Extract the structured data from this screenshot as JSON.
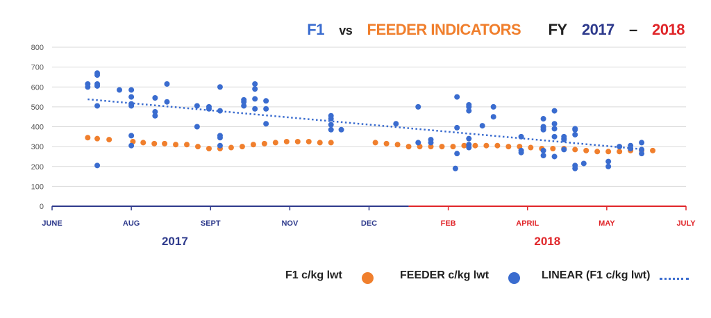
{
  "title": {
    "part1": "F1",
    "part2": "vs",
    "part3": "FEEDER INDICATORS",
    "part4": "FY",
    "part5": "2017",
    "part6": "–",
    "part7": "2018"
  },
  "colors": {
    "f1": "#f07f2d",
    "feeder": "#3a6ccf",
    "linear": "#3a6ccf",
    "axis_2017": "#2e3a8c",
    "axis_2018": "#e0262a",
    "title_dark": "#222222",
    "grid": "#d9d9d9"
  },
  "legend": {
    "f1": "F1 c/kg lwt",
    "feeder": "FEEDER c/kg lwt",
    "linear": "LINEAR (F1 c/kg lwt)"
  },
  "chart_data": {
    "type": "scatter",
    "y_ticks": [
      "0",
      "100",
      "200",
      "300",
      "400",
      "500",
      "600",
      "700",
      "800"
    ],
    "ylim": [
      0,
      800
    ],
    "grid": "horizontal",
    "x_months": [
      {
        "label": "JUNE",
        "year": "2017"
      },
      {
        "label": "AUG",
        "year": "2017"
      },
      {
        "label": "SEPT",
        "year": "2017"
      },
      {
        "label": "NOV",
        "year": "2017"
      },
      {
        "label": "DEC",
        "year": "2017"
      },
      {
        "label": "FEB",
        "year": "2018"
      },
      {
        "label": "APRIL",
        "year": "2018"
      },
      {
        "label": "MAY",
        "year": "2018"
      },
      {
        "label": "JULY",
        "year": "2018"
      }
    ],
    "year_labels": [
      "2017",
      "2018"
    ],
    "x_range": [
      0,
      8
    ],
    "legend_position": "bottom-right",
    "series": [
      {
        "name": "F1 c/kg lwt",
        "points": [
          [
            0.45,
            345
          ],
          [
            0.57,
            340
          ],
          [
            0.72,
            335
          ],
          [
            1.02,
            325
          ],
          [
            1.15,
            320
          ],
          [
            1.29,
            315
          ],
          [
            1.42,
            315
          ],
          [
            1.56,
            310
          ],
          [
            1.7,
            310
          ],
          [
            1.84,
            300
          ],
          [
            1.98,
            290
          ],
          [
            2.12,
            290
          ],
          [
            2.26,
            295
          ],
          [
            2.4,
            300
          ],
          [
            2.54,
            310
          ],
          [
            2.68,
            315
          ],
          [
            2.82,
            320
          ],
          [
            2.96,
            325
          ],
          [
            3.1,
            325
          ],
          [
            3.24,
            325
          ],
          [
            3.38,
            320
          ],
          [
            3.52,
            320
          ],
          [
            4.08,
            320
          ],
          [
            4.22,
            315
          ],
          [
            4.36,
            310
          ],
          [
            4.5,
            300
          ],
          [
            4.64,
            300
          ],
          [
            4.78,
            300
          ],
          [
            4.92,
            300
          ],
          [
            5.06,
            300
          ],
          [
            5.2,
            305
          ],
          [
            5.34,
            305
          ],
          [
            5.48,
            305
          ],
          [
            5.62,
            305
          ],
          [
            5.76,
            300
          ],
          [
            5.9,
            300
          ],
          [
            6.04,
            295
          ],
          [
            6.18,
            290
          ],
          [
            6.32,
            290
          ],
          [
            6.46,
            290
          ],
          [
            6.6,
            285
          ],
          [
            6.74,
            280
          ],
          [
            6.88,
            275
          ],
          [
            7.02,
            275
          ],
          [
            7.16,
            275
          ],
          [
            7.3,
            280
          ],
          [
            7.44,
            280
          ],
          [
            7.58,
            280
          ]
        ]
      },
      {
        "name": "FEEDER c/kg lwt",
        "points": [
          [
            0.45,
            600
          ],
          [
            0.45,
            615
          ],
          [
            0.57,
            670
          ],
          [
            0.57,
            660
          ],
          [
            0.57,
            615
          ],
          [
            0.57,
            605
          ],
          [
            0.57,
            505
          ],
          [
            0.57,
            205
          ],
          [
            0.85,
            585
          ],
          [
            1.0,
            585
          ],
          [
            1.0,
            550
          ],
          [
            1.0,
            515
          ],
          [
            1.0,
            505
          ],
          [
            1.0,
            355
          ],
          [
            1.0,
            305
          ],
          [
            1.3,
            545
          ],
          [
            1.3,
            475
          ],
          [
            1.3,
            455
          ],
          [
            1.45,
            615
          ],
          [
            1.45,
            525
          ],
          [
            1.83,
            505
          ],
          [
            1.83,
            400
          ],
          [
            1.98,
            500
          ],
          [
            1.98,
            490
          ],
          [
            2.12,
            600
          ],
          [
            2.12,
            480
          ],
          [
            2.12,
            355
          ],
          [
            2.12,
            345
          ],
          [
            2.12,
            305
          ],
          [
            2.42,
            535
          ],
          [
            2.42,
            525
          ],
          [
            2.42,
            505
          ],
          [
            2.56,
            615
          ],
          [
            2.56,
            590
          ],
          [
            2.56,
            540
          ],
          [
            2.56,
            490
          ],
          [
            2.7,
            530
          ],
          [
            2.7,
            490
          ],
          [
            2.7,
            415
          ],
          [
            3.52,
            455
          ],
          [
            3.52,
            440
          ],
          [
            3.52,
            410
          ],
          [
            3.52,
            385
          ],
          [
            3.65,
            385
          ],
          [
            4.34,
            415
          ],
          [
            4.62,
            500
          ],
          [
            4.62,
            320
          ],
          [
            4.78,
            335
          ],
          [
            4.78,
            320
          ],
          [
            5.11,
            550
          ],
          [
            5.11,
            395
          ],
          [
            5.11,
            265
          ],
          [
            5.09,
            190
          ],
          [
            5.26,
            510
          ],
          [
            5.26,
            500
          ],
          [
            5.26,
            480
          ],
          [
            5.26,
            340
          ],
          [
            5.26,
            310
          ],
          [
            5.26,
            295
          ],
          [
            5.43,
            405
          ],
          [
            5.57,
            500
          ],
          [
            5.57,
            450
          ],
          [
            5.92,
            350
          ],
          [
            5.92,
            280
          ],
          [
            5.92,
            270
          ],
          [
            6.2,
            440
          ],
          [
            6.2,
            400
          ],
          [
            6.2,
            395
          ],
          [
            6.2,
            385
          ],
          [
            6.2,
            280
          ],
          [
            6.2,
            255
          ],
          [
            6.34,
            480
          ],
          [
            6.34,
            415
          ],
          [
            6.34,
            390
          ],
          [
            6.34,
            350
          ],
          [
            6.34,
            250
          ],
          [
            6.46,
            350
          ],
          [
            6.46,
            340
          ],
          [
            6.46,
            335
          ],
          [
            6.46,
            285
          ],
          [
            6.6,
            390
          ],
          [
            6.6,
            385
          ],
          [
            6.6,
            360
          ],
          [
            6.6,
            205
          ],
          [
            6.6,
            190
          ],
          [
            6.71,
            215
          ],
          [
            7.02,
            225
          ],
          [
            7.02,
            200
          ],
          [
            7.16,
            300
          ],
          [
            7.3,
            305
          ],
          [
            7.3,
            290
          ],
          [
            7.44,
            320
          ],
          [
            7.44,
            285
          ],
          [
            7.44,
            265
          ]
        ]
      },
      {
        "name": "LINEAR (F1 c/kg lwt)",
        "line": [
          [
            0.45,
            538
          ],
          [
            7.44,
            287
          ]
        ]
      }
    ]
  }
}
